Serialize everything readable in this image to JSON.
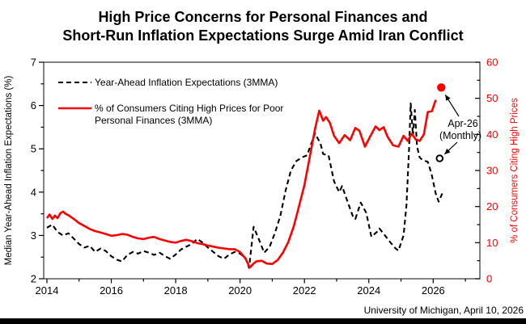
{
  "title": {
    "line1": "High Price Concerns for Personal Finances and",
    "line2": "Short-Run Inflation Expectations Surge Amid Iran Conflict"
  },
  "source_note": "University of Michigan, April 10, 2026",
  "colors": {
    "red": "#ff0000",
    "black": "#000000",
    "frame": "#333333"
  },
  "chart_data": {
    "type": "line",
    "title": "High Price Concerns for Personal Finances and Short-Run Inflation Expectations Surge Amid Iran Conflict",
    "x_axis": {
      "min": 2013.9,
      "max": 2027.45,
      "tick_labels": [
        2014,
        2016,
        2018,
        2020,
        2022,
        2024,
        2026
      ],
      "minor_tick_start": 2014,
      "minor_tick_end": 2027,
      "minor_tick_step": 1
    },
    "left_axis": {
      "label": "Median Year-Ahead Inflation Expectations (%)",
      "min": 2,
      "max": 7,
      "major_ticks": [
        2,
        3,
        4,
        5,
        6,
        7
      ],
      "minor_step": 0.5,
      "color": "#000000"
    },
    "right_axis": {
      "label": "% of Consumers Citing High Prices",
      "min": 0,
      "max": 60,
      "major_ticks": [
        0,
        10,
        20,
        30,
        40,
        50,
        60
      ],
      "minor_step": 5,
      "color": "#ff0000"
    },
    "legend": [
      {
        "label_lines": [
          "Year-Ahead Inflation Expectations (3MMA)"
        ],
        "style": "dashed",
        "color": "#000000"
      },
      {
        "label_lines": [
          "% of Consumers Citing High Prices for Poor",
          "Personal Finances (3MMA)"
        ],
        "style": "solid",
        "color": "#ff0000"
      }
    ],
    "series": [
      {
        "name": "Year-Ahead Inflation Expectations (3MMA)",
        "axis": "left",
        "color": "#000000",
        "line_style": "dashed",
        "points": [
          [
            2014.0,
            3.18
          ],
          [
            2014.17,
            3.25
          ],
          [
            2014.33,
            3.08
          ],
          [
            2014.5,
            3.0
          ],
          [
            2014.67,
            3.05
          ],
          [
            2014.83,
            2.93
          ],
          [
            2015.0,
            2.8
          ],
          [
            2015.17,
            2.72
          ],
          [
            2015.33,
            2.76
          ],
          [
            2015.5,
            2.62
          ],
          [
            2015.67,
            2.7
          ],
          [
            2015.83,
            2.64
          ],
          [
            2016.0,
            2.52
          ],
          [
            2016.17,
            2.44
          ],
          [
            2016.33,
            2.4
          ],
          [
            2016.5,
            2.55
          ],
          [
            2016.67,
            2.62
          ],
          [
            2016.83,
            2.58
          ],
          [
            2017.0,
            2.64
          ],
          [
            2017.17,
            2.6
          ],
          [
            2017.33,
            2.55
          ],
          [
            2017.5,
            2.6
          ],
          [
            2017.67,
            2.52
          ],
          [
            2017.83,
            2.46
          ],
          [
            2018.0,
            2.56
          ],
          [
            2018.17,
            2.68
          ],
          [
            2018.33,
            2.74
          ],
          [
            2018.5,
            2.8
          ],
          [
            2018.67,
            2.92
          ],
          [
            2018.83,
            2.84
          ],
          [
            2019.0,
            2.72
          ],
          [
            2019.17,
            2.62
          ],
          [
            2019.33,
            2.52
          ],
          [
            2019.5,
            2.46
          ],
          [
            2019.67,
            2.56
          ],
          [
            2019.83,
            2.62
          ],
          [
            2020.0,
            2.58
          ],
          [
            2020.17,
            2.48
          ],
          [
            2020.28,
            2.25
          ],
          [
            2020.42,
            3.2
          ],
          [
            2020.58,
            2.92
          ],
          [
            2020.75,
            2.6
          ],
          [
            2020.92,
            2.74
          ],
          [
            2021.08,
            3.05
          ],
          [
            2021.25,
            3.45
          ],
          [
            2021.42,
            4.05
          ],
          [
            2021.58,
            4.5
          ],
          [
            2021.75,
            4.72
          ],
          [
            2021.92,
            4.8
          ],
          [
            2022.08,
            4.85
          ],
          [
            2022.25,
            5.2
          ],
          [
            2022.33,
            5.36
          ],
          [
            2022.5,
            5.12
          ],
          [
            2022.58,
            4.88
          ],
          [
            2022.75,
            4.85
          ],
          [
            2022.92,
            4.25
          ],
          [
            2023.08,
            4.0
          ],
          [
            2023.17,
            4.14
          ],
          [
            2023.33,
            3.8
          ],
          [
            2023.5,
            3.45
          ],
          [
            2023.58,
            3.38
          ],
          [
            2023.75,
            3.76
          ],
          [
            2023.92,
            3.52
          ],
          [
            2024.08,
            2.97
          ],
          [
            2024.25,
            3.08
          ],
          [
            2024.33,
            3.16
          ],
          [
            2024.5,
            3.0
          ],
          [
            2024.67,
            2.84
          ],
          [
            2024.83,
            2.7
          ],
          [
            2024.92,
            2.65
          ],
          [
            2025.08,
            3.0
          ],
          [
            2025.17,
            3.7
          ],
          [
            2025.25,
            5.0
          ],
          [
            2025.3,
            6.05
          ],
          [
            2025.37,
            5.3
          ],
          [
            2025.43,
            5.9
          ],
          [
            2025.5,
            5.05
          ],
          [
            2025.58,
            4.8
          ],
          [
            2025.67,
            4.74
          ],
          [
            2025.83,
            4.7
          ],
          [
            2025.95,
            4.42
          ],
          [
            2026.08,
            3.96
          ],
          [
            2026.17,
            3.78
          ],
          [
            2026.28,
            3.97
          ]
        ]
      },
      {
        "name": "% of Consumers Citing High Prices for Poor Personal Finances (3MMA)",
        "axis": "right",
        "color": "#ff0000",
        "line_style": "solid",
        "points": [
          [
            2014.0,
            16.8
          ],
          [
            2014.08,
            17.8
          ],
          [
            2014.17,
            16.6
          ],
          [
            2014.25,
            17.5
          ],
          [
            2014.33,
            16.8
          ],
          [
            2014.42,
            18.2
          ],
          [
            2014.5,
            18.6
          ],
          [
            2014.58,
            18.0
          ],
          [
            2014.67,
            17.6
          ],
          [
            2014.83,
            16.6
          ],
          [
            2015.0,
            15.4
          ],
          [
            2015.17,
            14.6
          ],
          [
            2015.33,
            13.8
          ],
          [
            2015.5,
            13.2
          ],
          [
            2015.67,
            12.8
          ],
          [
            2015.83,
            12.4
          ],
          [
            2016.0,
            11.9
          ],
          [
            2016.17,
            12.1
          ],
          [
            2016.33,
            12.4
          ],
          [
            2016.5,
            12.2
          ],
          [
            2016.67,
            11.6
          ],
          [
            2016.83,
            11.2
          ],
          [
            2017.0,
            11.0
          ],
          [
            2017.17,
            11.4
          ],
          [
            2017.33,
            11.6
          ],
          [
            2017.5,
            11.0
          ],
          [
            2017.67,
            10.6
          ],
          [
            2017.83,
            10.2
          ],
          [
            2018.0,
            10.0
          ],
          [
            2018.17,
            10.5
          ],
          [
            2018.33,
            10.8
          ],
          [
            2018.5,
            10.4
          ],
          [
            2018.67,
            9.9
          ],
          [
            2018.83,
            9.6
          ],
          [
            2019.0,
            9.2
          ],
          [
            2019.17,
            8.9
          ],
          [
            2019.33,
            8.6
          ],
          [
            2019.5,
            8.4
          ],
          [
            2019.67,
            8.2
          ],
          [
            2019.83,
            8.2
          ],
          [
            2020.0,
            7.4
          ],
          [
            2020.17,
            5.6
          ],
          [
            2020.3,
            3.1
          ],
          [
            2020.42,
            4.2
          ],
          [
            2020.5,
            4.8
          ],
          [
            2020.67,
            5.0
          ],
          [
            2020.83,
            4.2
          ],
          [
            2021.0,
            4.1
          ],
          [
            2021.17,
            5.2
          ],
          [
            2021.33,
            7.2
          ],
          [
            2021.5,
            10.2
          ],
          [
            2021.67,
            14.6
          ],
          [
            2021.83,
            20.0
          ],
          [
            2022.0,
            26.0
          ],
          [
            2022.17,
            34.0
          ],
          [
            2022.33,
            41.5
          ],
          [
            2022.46,
            46.6
          ],
          [
            2022.58,
            43.8
          ],
          [
            2022.67,
            44.8
          ],
          [
            2022.79,
            43.2
          ],
          [
            2022.92,
            39.6
          ],
          [
            2023.08,
            37.6
          ],
          [
            2023.25,
            39.8
          ],
          [
            2023.42,
            38.4
          ],
          [
            2023.58,
            41.8
          ],
          [
            2023.71,
            41.0
          ],
          [
            2023.88,
            36.6
          ],
          [
            2024.04,
            39.4
          ],
          [
            2024.21,
            42.2
          ],
          [
            2024.33,
            41.2
          ],
          [
            2024.46,
            42.0
          ],
          [
            2024.58,
            39.4
          ],
          [
            2024.75,
            37.0
          ],
          [
            2024.92,
            36.6
          ],
          [
            2025.08,
            39.6
          ],
          [
            2025.21,
            38.2
          ],
          [
            2025.33,
            40.2
          ],
          [
            2025.46,
            38.6
          ],
          [
            2025.58,
            38.2
          ],
          [
            2025.71,
            40.0
          ],
          [
            2025.83,
            46.2
          ],
          [
            2025.96,
            46.4
          ],
          [
            2026.08,
            49.6
          ]
        ]
      }
    ],
    "point_markers": [
      {
        "name": "apr-26-monthly-high-prices",
        "axis": "right",
        "x": 2026.25,
        "value": 53,
        "style": "filled",
        "color": "#ff0000"
      },
      {
        "name": "apr-26-monthly-inflation-expectations",
        "axis": "left",
        "x": 2026.2,
        "value": 4.78,
        "style": "open",
        "color": "#000000"
      }
    ],
    "annotation": {
      "line1": "Apr-26",
      "line2": "(Monthly)"
    }
  }
}
